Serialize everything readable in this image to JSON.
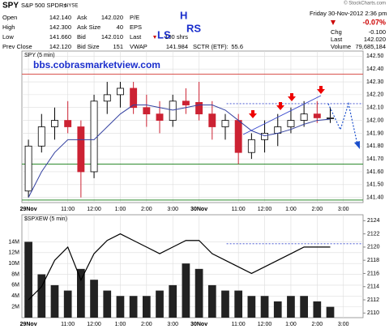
{
  "header": {
    "symbol": "SPY",
    "name": "S&P 500 SPDRs",
    "exchange": "NYSE",
    "copyright": "© StockCharts.com",
    "fields_left": [
      [
        "Open",
        "142.140"
      ],
      [
        "High",
        "142.300"
      ],
      [
        "Low",
        "141.660"
      ],
      [
        "Prev Close",
        "142.120"
      ]
    ],
    "fields_mid": [
      [
        "Ask",
        "142.020"
      ],
      [
        "Ask Size",
        "40"
      ],
      [
        "Bid",
        "142.010"
      ],
      [
        "Bid Size",
        "151"
      ]
    ],
    "fields_right": [
      [
        "P/E",
        ""
      ],
      [
        "EPS",
        ""
      ],
      [
        "Last",
        "100 shrs"
      ],
      [
        "VWAP",
        "141.984"
      ]
    ],
    "sctr": [
      "SCTR (ETF):",
      "55.6"
    ],
    "datetime": "Friday  30-Nov-2012  2:36 pm",
    "pct_change": "-0.07%",
    "quote": [
      [
        "Chg",
        "-0.100"
      ],
      [
        "Last",
        "142.020"
      ],
      [
        "Volume",
        "79,685,184"
      ]
    ],
    "annotations": {
      "ls": "LS",
      "h": "H",
      "rs": "RS"
    }
  },
  "chart_data": [
    {
      "type": "candlestick",
      "title": "SPY (5 min)",
      "watermark": "bbs.cobrasmarketview.com",
      "categories": [
        "29Nov",
        null,
        null,
        "11:00",
        null,
        "12:00",
        null,
        "1:00",
        null,
        "2:00",
        null,
        "3:00",
        null,
        "30Nov",
        null,
        null,
        "11:00",
        null,
        "12:00",
        null,
        "1:00",
        null,
        "2:00",
        null,
        "3:00",
        null
      ],
      "open": [
        141.45,
        141.8,
        141.95,
        142.0,
        141.95,
        141.6,
        142.15,
        142.2,
        142.25,
        142.1,
        142.05,
        142.0,
        142.15,
        142.14,
        142.05,
        141.95,
        142.0,
        141.75,
        141.85,
        141.9,
        141.95,
        142.0,
        142.05,
        142.02,
        null,
        null
      ],
      "high": [
        141.85,
        142.05,
        142.1,
        142.15,
        142.0,
        142.2,
        142.3,
        142.3,
        142.3,
        142.2,
        142.15,
        142.2,
        142.25,
        142.3,
        142.15,
        142.05,
        142.05,
        141.9,
        142.0,
        142.05,
        142.1,
        142.15,
        142.15,
        142.1,
        null,
        null
      ],
      "low": [
        141.4,
        141.75,
        141.85,
        141.9,
        141.4,
        141.55,
        142.05,
        142.1,
        142.05,
        141.95,
        141.9,
        141.95,
        142.05,
        142.0,
        141.85,
        141.85,
        141.66,
        141.7,
        141.75,
        141.8,
        141.9,
        141.95,
        141.98,
        141.98,
        null,
        null
      ],
      "close": [
        141.8,
        141.95,
        142.0,
        141.95,
        141.6,
        142.15,
        142.2,
        142.25,
        142.1,
        142.05,
        142.0,
        142.15,
        142.12,
        142.05,
        141.95,
        142.0,
        141.75,
        141.85,
        141.9,
        141.95,
        142.0,
        142.05,
        142.02,
        142.02,
        null,
        null
      ],
      "up_color": "#000000",
      "down_color": "#cc2233",
      "moving_average": {
        "color": "#3340a0",
        "values": [
          141.4,
          141.6,
          141.75,
          141.85,
          141.85,
          141.85,
          141.95,
          142.05,
          142.12,
          142.12,
          142.1,
          142.08,
          142.1,
          142.12,
          142.12,
          142.08,
          142.0,
          141.92,
          141.88,
          141.9,
          141.93,
          141.97,
          142.0,
          142.01,
          null,
          null
        ]
      },
      "levels": [
        {
          "value": 142.36,
          "color": "#d9534f"
        },
        {
          "value": 141.66,
          "color": "#2e8b2e"
        },
        {
          "value": 141.38,
          "color": "#2e8b2e"
        },
        {
          "value": 142.13,
          "color": "#3344cc",
          "dashed": true
        }
      ],
      "ylim": [
        141.36,
        142.54
      ],
      "yticks": [
        {
          "value": 141.4,
          "label": "141.40"
        },
        {
          "value": 141.5,
          "label": "141.50"
        },
        {
          "value": 141.6,
          "label": "141.60"
        },
        {
          "value": 141.7,
          "label": "141.70"
        },
        {
          "value": 141.8,
          "label": "141.80"
        },
        {
          "value": 141.9,
          "label": "141.90"
        },
        {
          "value": 142.0,
          "label": "142.00"
        },
        {
          "value": 142.1,
          "label": "142.10"
        },
        {
          "value": 142.2,
          "label": "142.20"
        },
        {
          "value": 142.3,
          "label": "142.30"
        },
        {
          "value": 142.4,
          "label": "142.40"
        },
        {
          "value": 142.5,
          "label": "142.50"
        }
      ],
      "grid": true
    },
    {
      "type": "bar",
      "title": "$SPXEW (5 min)",
      "categories": [
        "29Nov",
        null,
        null,
        "11:00",
        null,
        "12:00",
        null,
        "1:00",
        null,
        "2:00",
        null,
        "3:00",
        null,
        "30Nov",
        null,
        null,
        "11:00",
        null,
        "12:00",
        null,
        "1:00",
        null,
        "2:00",
        null,
        "3:00",
        null
      ],
      "values": [
        14000000,
        8000000,
        6000000,
        5000000,
        9000000,
        7000000,
        5000000,
        4000000,
        4000000,
        4000000,
        5000000,
        6000000,
        10000000,
        9000000,
        6000000,
        5000000,
        5000000,
        4000000,
        4000000,
        3000000,
        4000000,
        4000000,
        3000000,
        2000000,
        null,
        null
      ],
      "color": "#222222",
      "ylim": [
        0,
        19000000
      ],
      "yticks": [
        {
          "value": 2000000,
          "label": "2M"
        },
        {
          "value": 4000000,
          "label": "4M"
        },
        {
          "value": 6000000,
          "label": "6M"
        },
        {
          "value": 8000000,
          "label": "8M"
        },
        {
          "value": 10000000,
          "label": "10M"
        },
        {
          "value": 12000000,
          "label": "12M"
        },
        {
          "value": 14000000,
          "label": "14M"
        }
      ],
      "series": [
        {
          "axis": "y2",
          "color": "#000000",
          "values": [
            2112,
            2114,
            2118,
            2120,
            2115,
            2119,
            2121,
            2122,
            2121,
            2120,
            2119,
            2120,
            2121,
            2121,
            2119,
            2118,
            2117,
            2116,
            2117,
            2118,
            2119,
            2120,
            2120,
            2120,
            null,
            null
          ]
        }
      ],
      "levels": [
        {
          "value": 2120.5,
          "color": "#3344cc",
          "dashed": true,
          "axis": "y2"
        }
      ],
      "y2lim": [
        2109.3,
        2124.9
      ],
      "y2ticks": [
        2110,
        2112,
        2114,
        2116,
        2118,
        2120,
        2122,
        2124
      ],
      "grid": true
    }
  ]
}
